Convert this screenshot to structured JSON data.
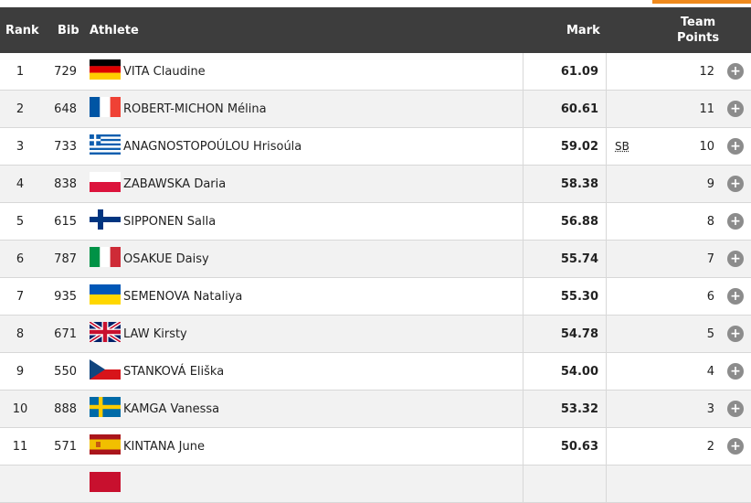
{
  "header": {
    "rank": "Rank",
    "bib": "Bib",
    "athlete": "Athlete",
    "mark": "Mark",
    "team_points_line1": "Team",
    "team_points_line2": "Points"
  },
  "expand_icon": "plus-circle-icon",
  "colors": {
    "header_bg": "#3d3d3d",
    "accent": "#f08a1c",
    "row_alt": "#f2f2f2"
  },
  "rows": [
    {
      "rank": "1",
      "bib": "729",
      "flag": "germany-flag-icon",
      "athlete": "VITA Claudine",
      "mark": "61.09",
      "note": "",
      "points": "12"
    },
    {
      "rank": "2",
      "bib": "648",
      "flag": "france-flag-icon",
      "athlete": "ROBERT-MICHON Mélina",
      "mark": "60.61",
      "note": "",
      "points": "11"
    },
    {
      "rank": "3",
      "bib": "733",
      "flag": "greece-flag-icon",
      "athlete": "ANAGNOSTOPOÚLOU Hrisoúla",
      "mark": "59.02",
      "note": "SB",
      "points": "10"
    },
    {
      "rank": "4",
      "bib": "838",
      "flag": "poland-flag-icon",
      "athlete": "ZABAWSKA Daria",
      "mark": "58.38",
      "note": "",
      "points": "9"
    },
    {
      "rank": "5",
      "bib": "615",
      "flag": "finland-flag-icon",
      "athlete": "SIPPONEN Salla",
      "mark": "56.88",
      "note": "",
      "points": "8"
    },
    {
      "rank": "6",
      "bib": "787",
      "flag": "italy-flag-icon",
      "athlete": "OSAKUE Daisy",
      "mark": "55.74",
      "note": "",
      "points": "7"
    },
    {
      "rank": "7",
      "bib": "935",
      "flag": "ukraine-flag-icon",
      "athlete": "SEMENOVA Nataliya",
      "mark": "55.30",
      "note": "",
      "points": "6"
    },
    {
      "rank": "8",
      "bib": "671",
      "flag": "uk-flag-icon",
      "athlete": "LAW Kirsty",
      "mark": "54.78",
      "note": "",
      "points": "5"
    },
    {
      "rank": "9",
      "bib": "550",
      "flag": "czech-flag-icon",
      "athlete": "STANKOVÁ Eliška",
      "mark": "54.00",
      "note": "",
      "points": "4"
    },
    {
      "rank": "10",
      "bib": "888",
      "flag": "sweden-flag-icon",
      "athlete": "KAMGA Vanessa",
      "mark": "53.32",
      "note": "",
      "points": "3"
    },
    {
      "rank": "11",
      "bib": "571",
      "flag": "spain-flag-icon",
      "athlete": "KINTANA June",
      "mark": "50.63",
      "note": "",
      "points": "2"
    }
  ]
}
